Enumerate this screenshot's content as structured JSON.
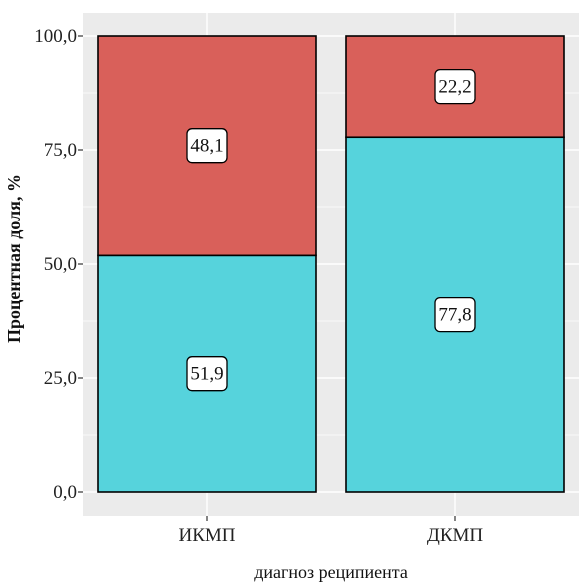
{
  "chart_data": {
    "type": "bar",
    "stacked": true,
    "orientation": "vertical",
    "categories": [
      "ИКМП",
      "ДКМП"
    ],
    "series": [
      {
        "color": "#56d3dc",
        "values": [
          51.9,
          77.8
        ]
      },
      {
        "color": "#d9605a",
        "values": [
          48.1,
          22.2
        ]
      }
    ],
    "data_labels": [
      [
        "51,9",
        "77,8"
      ],
      [
        "48,1",
        "22,2"
      ]
    ],
    "xlabel": "диагноз реципиента",
    "ylabel": "Процентная доля, %",
    "ylim": [
      0,
      100
    ],
    "y_ticks": [
      0,
      25,
      50,
      75,
      100
    ],
    "y_tick_labels": [
      "0,0",
      "25,0",
      "50,0",
      "75,0",
      "100,0"
    ],
    "grid": true,
    "panel_background": "#ebebeb",
    "bar_outline": "#000000"
  }
}
